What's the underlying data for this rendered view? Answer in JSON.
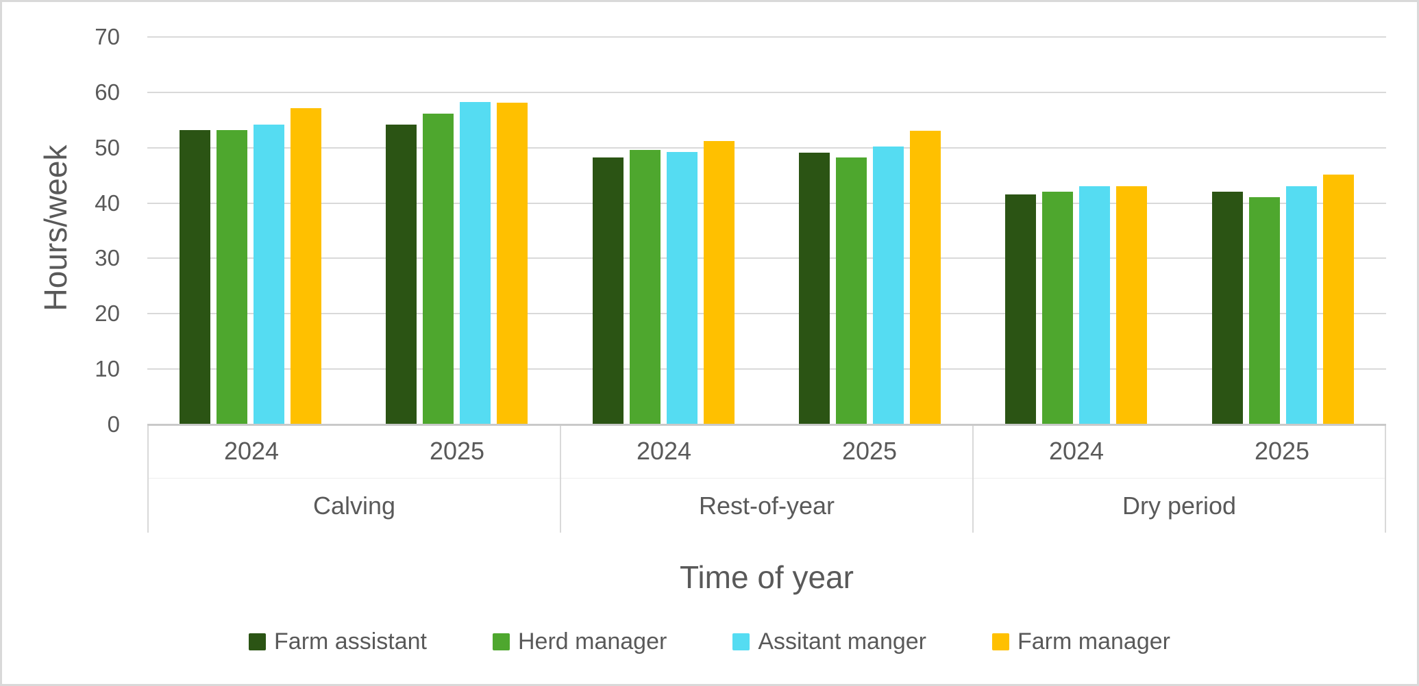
{
  "chart_data": {
    "type": "bar",
    "title": "",
    "xlabel": "Time of year",
    "ylabel": "Hours/week",
    "ylim": [
      0,
      70
    ],
    "ytick_step": 10,
    "grid": "horizontal",
    "legend_position": "bottom",
    "group_categories": [
      "Calving",
      "Rest-of-year",
      "Dry period"
    ],
    "sub_categories": [
      "2024",
      "2025"
    ],
    "columns": [
      "Calving 2024",
      "Calving 2025",
      "Rest-of-year 2024",
      "Rest-of-year 2025",
      "Dry period 2024",
      "Dry period 2025"
    ],
    "series": [
      {
        "name": "Farm assistant",
        "color": "#2B5414",
        "values": [
          53.2,
          54.2,
          48.2,
          49.1,
          41.6,
          42.1
        ]
      },
      {
        "name": "Herd manager",
        "color": "#4EA72E",
        "values": [
          53.2,
          56.1,
          49.6,
          48.2,
          42.1,
          41.1
        ]
      },
      {
        "name": "Assitant manger",
        "color": "#55DCF2",
        "values": [
          54.2,
          58.2,
          49.2,
          50.2,
          43.1,
          43.1
        ]
      },
      {
        "name": "Farm manager",
        "color": "#FFC000",
        "values": [
          57.1,
          58.1,
          51.2,
          53.0,
          43.1,
          45.1
        ]
      }
    ],
    "colors": {
      "gridline": "#D9D9D9",
      "axis_line": "#C9C9C9",
      "text": "#595959",
      "border": "#D9D9D9"
    }
  }
}
